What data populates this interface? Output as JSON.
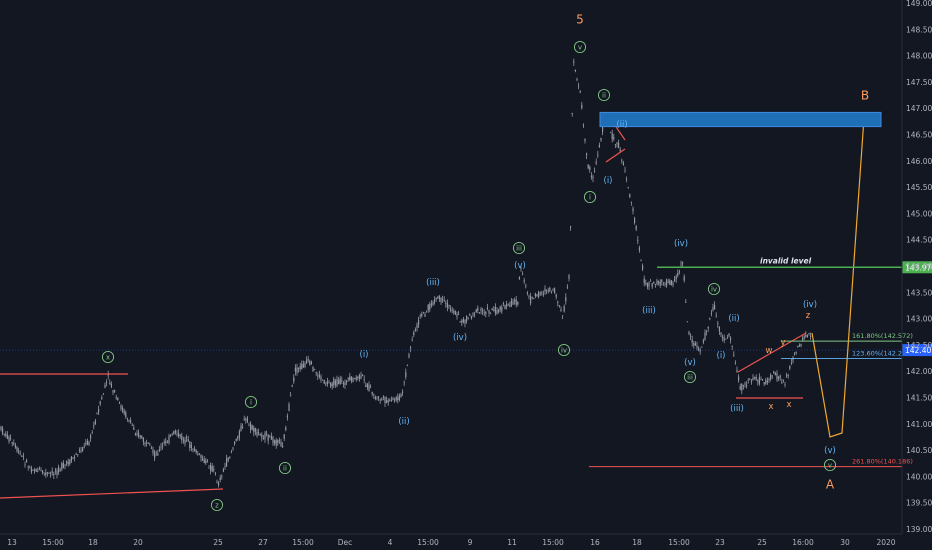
{
  "chart_data": {
    "type": "line",
    "instrument_note": "",
    "ylim": [
      138.5,
      149.0
    ],
    "y_ticks": [
      "149.000",
      "148.500",
      "148.000",
      "147.500",
      "147.000",
      "146.500",
      "146.000",
      "145.500",
      "145.000",
      "144.500",
      "144.000",
      "143.500",
      "143.000",
      "142.500",
      "142.000",
      "141.500",
      "141.000",
      "140.500",
      "140.000",
      "139.500",
      "139.000"
    ],
    "x_ticks": [
      "13",
      "15:00",
      "18",
      "20",
      "25",
      "27",
      "15:00",
      "Dec",
      "4",
      "15:00",
      "9",
      "11",
      "15:00",
      "16",
      "18",
      "15:00",
      "23",
      "25",
      "16:00",
      "30",
      "2020"
    ],
    "last_price": 142.401,
    "last_price_label": "142.401",
    "invalid_level": {
      "value": 143.976,
      "label": "invalid level",
      "price_label": "143.976"
    },
    "fibs": [
      {
        "label": "161.80%(142.572)",
        "value": 142.572
      },
      {
        "label": "123.60%(142.240)",
        "value": 142.24
      },
      {
        "label": "261.80%(140.186)",
        "value": 140.186
      }
    ],
    "target_zone": {
      "from": 146.65,
      "to": 146.92
    },
    "wave_labels": [
      {
        "text": "5",
        "kind": "major",
        "x": 580,
        "y": 19
      },
      {
        "text": "B",
        "kind": "major",
        "x": 865,
        "y": 95
      },
      {
        "text": "A",
        "kind": "major",
        "x": 830,
        "y": 484
      },
      {
        "text": "v",
        "kind": "circle",
        "x": 580,
        "y": 47
      },
      {
        "text": "ii",
        "kind": "circle",
        "x": 604,
        "y": 95
      },
      {
        "text": "i",
        "kind": "circle",
        "x": 590,
        "y": 197
      },
      {
        "text": "iii",
        "kind": "circle",
        "x": 519,
        "y": 248
      },
      {
        "text": "iv",
        "kind": "circle",
        "x": 564,
        "y": 350
      },
      {
        "text": "iv",
        "kind": "circle",
        "x": 714,
        "y": 289
      },
      {
        "text": "iii",
        "kind": "circle",
        "x": 690,
        "y": 377
      },
      {
        "text": "x",
        "kind": "circle",
        "x": 108,
        "y": 357
      },
      {
        "text": "z",
        "kind": "circle",
        "x": 217,
        "y": 505
      },
      {
        "text": "i",
        "kind": "circle",
        "x": 251,
        "y": 402
      },
      {
        "text": "ii",
        "kind": "circle",
        "x": 285,
        "y": 468
      },
      {
        "text": "v",
        "kind": "circle",
        "x": 830,
        "y": 465
      },
      {
        "text": "(ii)",
        "kind": "minor",
        "x": 622,
        "y": 124
      },
      {
        "text": "(i)",
        "kind": "minor",
        "x": 608,
        "y": 180
      },
      {
        "text": "(iv)",
        "kind": "minor",
        "x": 681,
        "y": 243
      },
      {
        "text": "(iii)",
        "kind": "minor",
        "x": 649,
        "y": 310
      },
      {
        "text": "(v)",
        "kind": "minor",
        "x": 690,
        "y": 362
      },
      {
        "text": "(ii)",
        "kind": "minor",
        "x": 734,
        "y": 318
      },
      {
        "text": "(i)",
        "kind": "minor",
        "x": 721,
        "y": 355
      },
      {
        "text": "(iii)",
        "kind": "minor",
        "x": 737,
        "y": 408
      },
      {
        "text": "(iv)",
        "kind": "minor",
        "x": 810,
        "y": 304
      },
      {
        "text": "(v)",
        "kind": "minor",
        "x": 830,
        "y": 450
      },
      {
        "text": "(iii)",
        "kind": "minor",
        "x": 433,
        "y": 282
      },
      {
        "text": "(iv)",
        "kind": "minor",
        "x": 460,
        "y": 337
      },
      {
        "text": "(v)",
        "kind": "minor",
        "x": 520,
        "y": 265
      },
      {
        "text": "(i)",
        "kind": "minor",
        "x": 364,
        "y": 354
      },
      {
        "text": "(ii)",
        "kind": "minor",
        "x": 404,
        "y": 421
      },
      {
        "text": "w",
        "kind": "small",
        "x": 769,
        "y": 350
      },
      {
        "text": "y",
        "kind": "small",
        "x": 783,
        "y": 342
      },
      {
        "text": "z",
        "kind": "small",
        "x": 808,
        "y": 315
      },
      {
        "text": "x",
        "kind": "small",
        "x": 771,
        "y": 406
      },
      {
        "text": "x",
        "kind": "small",
        "x": 789,
        "y": 404
      }
    ]
  },
  "colors": {
    "background": "#131722",
    "candles": "#9598a1",
    "axis_text": "#b2b5be",
    "invalid": "#4caf50",
    "green_label": "#81c784",
    "blue_label": "#64b5f6",
    "orange_label": "#ff9d5c",
    "red_line": "#f05350",
    "zone": "#1e6fb5",
    "price_tag": "#2962ff",
    "projection": "#f0a830"
  }
}
